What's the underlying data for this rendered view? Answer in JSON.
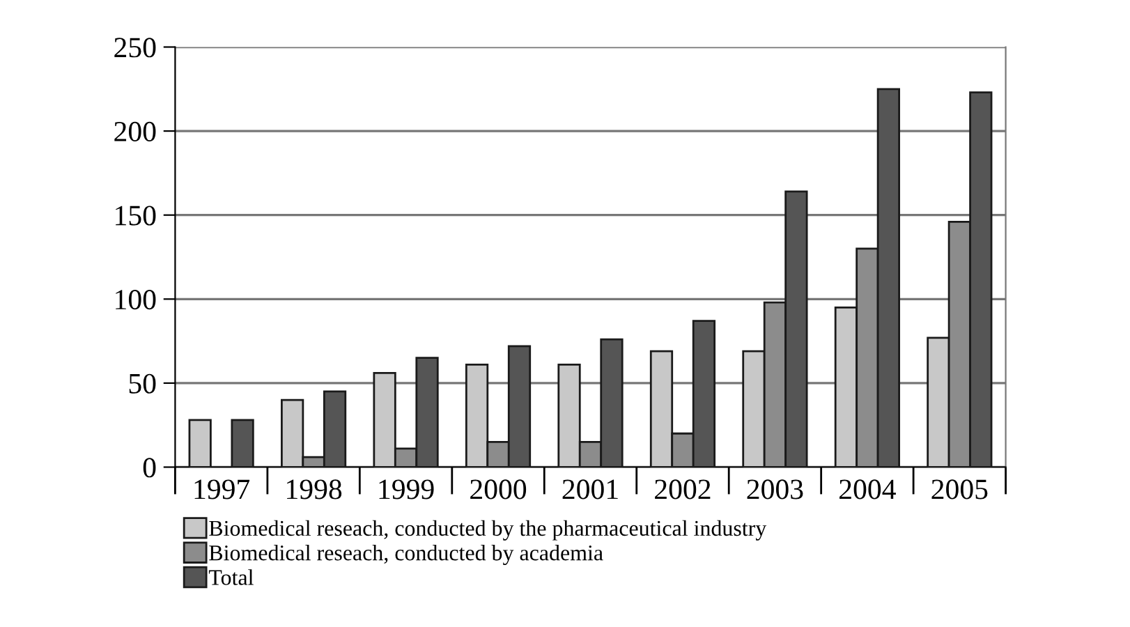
{
  "chart_data": {
    "type": "bar",
    "categories": [
      "1997",
      "1998",
      "1999",
      "2000",
      "2001",
      "2002",
      "2003",
      "2004",
      "2005"
    ],
    "series": [
      {
        "name": "Biomedical reseach, conducted by the pharmaceutical industry",
        "color": "#c8c8c8",
        "values": [
          28,
          40,
          56,
          61,
          61,
          69,
          69,
          95,
          77
        ]
      },
      {
        "name": "Biomedical reseach, conducted by academia",
        "color": "#8c8c8c",
        "values": [
          null,
          6,
          11,
          15,
          15,
          20,
          98,
          130,
          146
        ]
      },
      {
        "name": "Total",
        "color": "#555555",
        "values": [
          28,
          45,
          65,
          72,
          76,
          87,
          164,
          225,
          223
        ]
      }
    ],
    "ylim": [
      0,
      250
    ],
    "yticks": [
      0,
      50,
      100,
      150,
      200,
      250
    ],
    "grid": "y",
    "legend": "bottom"
  }
}
